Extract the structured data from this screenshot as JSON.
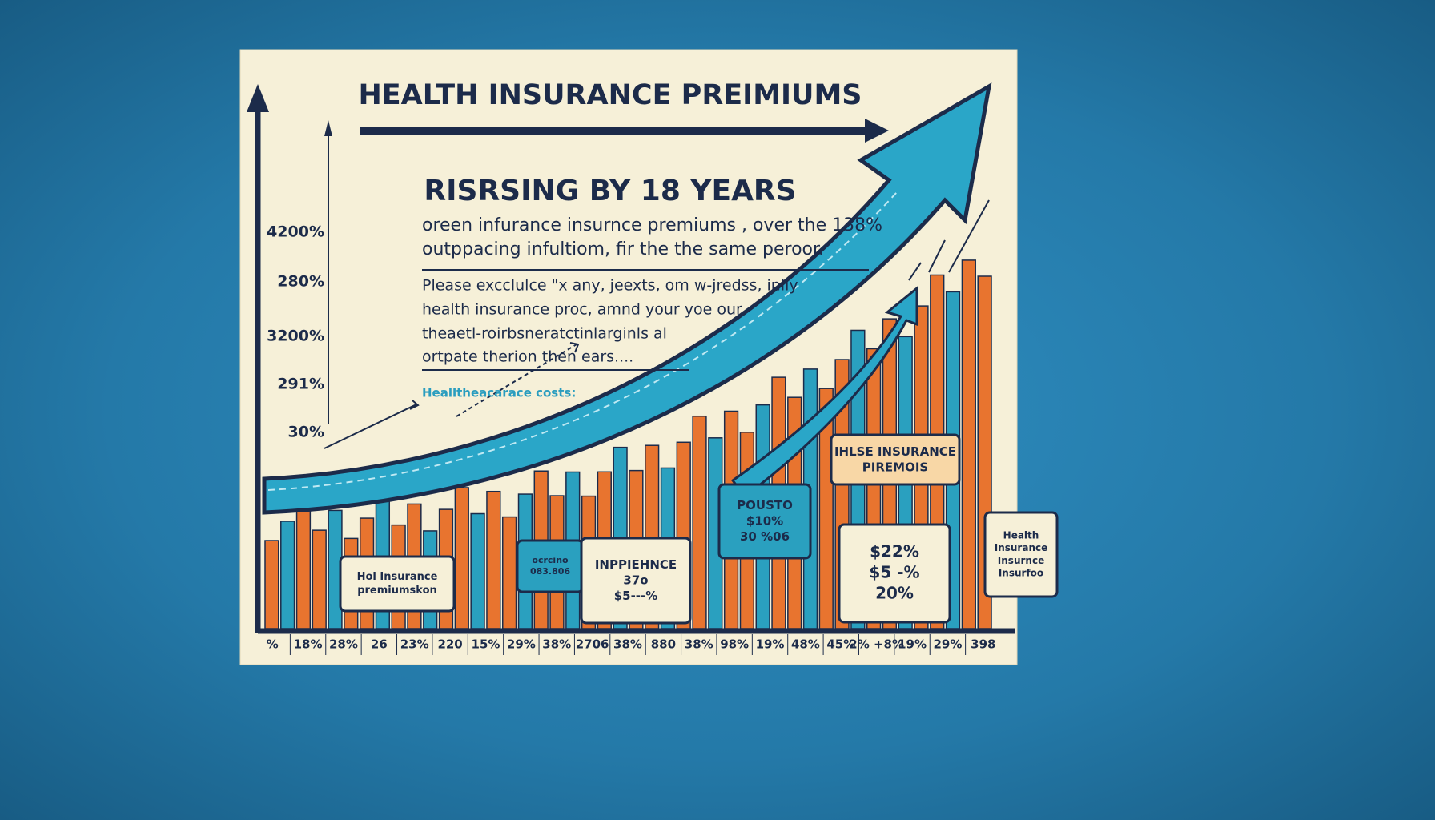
{
  "header": {
    "title": "HEALTH INSURANCE PREIMIUMS",
    "subtitle": "RISRSING BY 18 YEARS"
  },
  "body": {
    "lines": [
      "oreen infurance insurnce premiums , over the 138%",
      "outppacing infultiom, fir the the same peroor."
    ],
    "note_lines": [
      "Please excclulce \"x any, jeexts, om w-jredss, inlly",
      "health insurance proc, amnd your yoe our",
      "theaetl-roirbsneratctinlarginls al",
      "ortpate therion then ears...."
    ],
    "caption": "Healltheacarace costs:"
  },
  "y_axis_labels": [
    "4200%",
    "280%",
    "3200%",
    "291%",
    "30%"
  ],
  "x_axis_labels": [
    "%",
    "18%",
    "28%",
    "26",
    "23%",
    "220",
    "15%",
    "29%",
    "38%",
    "2706",
    "38%",
    "880",
    "38%",
    "98%",
    "19%",
    "48%",
    "45%",
    "2% +8%",
    "19%",
    "29%",
    "398"
  ],
  "callouts": [
    {
      "lines": [
        "Hol Insurance",
        "premiumskon"
      ]
    },
    {
      "lines": [
        "ocrcino",
        "083.806"
      ]
    },
    {
      "lines": [
        "INPPIEHNCE",
        "37o",
        "$5---%"
      ]
    },
    {
      "lines": [
        "POUSTO",
        "$10%",
        "30 %06"
      ]
    },
    {
      "lines": [
        "IHLSE INSURANCE",
        "PIREMOIS"
      ]
    },
    {
      "lines": [
        "$22%",
        "$5 -%",
        "20%"
      ]
    },
    {
      "lines": [
        "Health",
        "Insurance",
        "Insurnce",
        "Insurfoo"
      ]
    }
  ]
}
